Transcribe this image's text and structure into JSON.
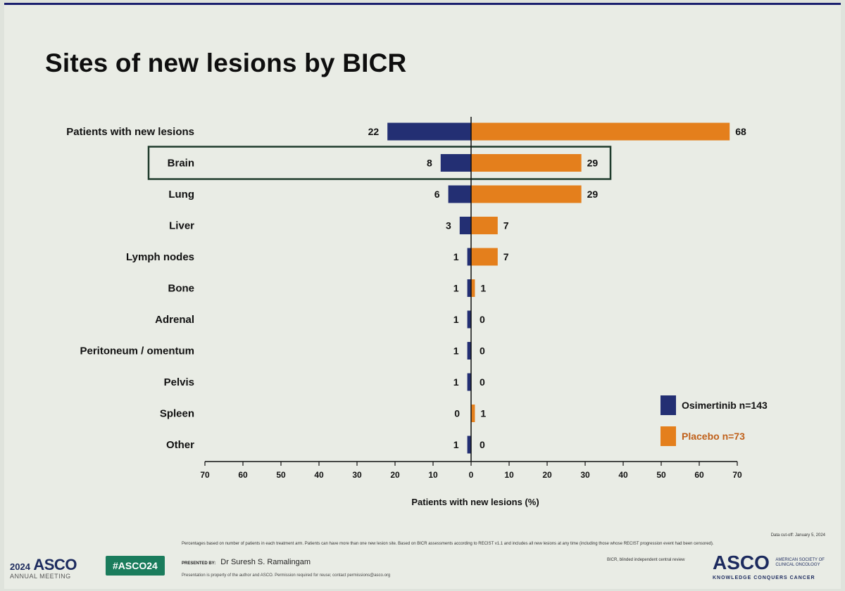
{
  "slide": {
    "title": "Sites of new lesions by BICR",
    "data_cutoff": "Data cut-off: January 5, 2024",
    "footnote": "Percentages based on number of patients in each treatment arm. Patients can have more than one new lesion site. Based on BICR assessments according to RECIST v1.1 and includes all new lesions at any time (including those whose RECIST progression event had been censored).",
    "bicr_note": "BICR, blinded independent central review",
    "presented_by_label": "PRESENTED BY:",
    "presenter": "Dr Suresh S. Ramalingam",
    "property_note": "Presentation is property of the author and ASCO. Permission required for reuse; contact permissions@asco.org",
    "hashtag": "#ASCO24",
    "meeting_year": "2024",
    "meeting_org": "ASCO",
    "meeting_name": "ANNUAL MEETING",
    "org_logo": "ASCO",
    "org_fullname_line1": "AMERICAN SOCIETY OF",
    "org_fullname_line2": "CLINICAL ONCOLOGY",
    "org_tagline": "KNOWLEDGE CONQUERS CANCER"
  },
  "chart_data": {
    "type": "bar",
    "orientation": "horizontal-butterfly",
    "categories": [
      "Patients with new lesions",
      "Brain",
      "Lung",
      "Liver",
      "Lymph nodes",
      "Bone",
      "Adrenal",
      "Peritoneum / omentum",
      "Pelvis",
      "Spleen",
      "Other"
    ],
    "series": [
      {
        "name": "Osimertinib n=143",
        "side": "left",
        "color": "#232f73",
        "values": [
          22,
          8,
          6,
          3,
          1,
          1,
          1,
          1,
          1,
          0,
          1
        ]
      },
      {
        "name": "Placebo n=73",
        "side": "right",
        "color": "#e47f1c",
        "values": [
          68,
          29,
          29,
          7,
          7,
          1,
          0,
          0,
          0,
          1,
          0
        ]
      }
    ],
    "highlighted_category": "Brain",
    "xlabel": "Patients with new lesions (%)",
    "ylabel": "",
    "xlim": [
      -70,
      70
    ],
    "xticks": [
      70,
      60,
      50,
      40,
      30,
      20,
      10,
      0,
      10,
      20,
      30,
      40,
      50,
      60,
      70
    ],
    "legend_position": "bottom-right",
    "grid": false
  }
}
